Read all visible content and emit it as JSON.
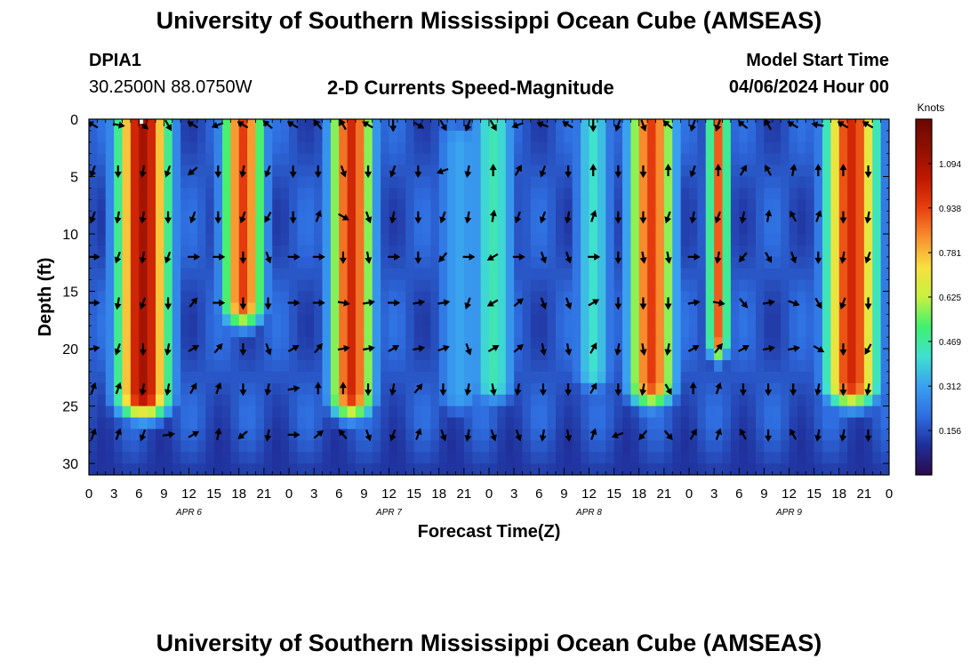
{
  "header": {
    "title": "University of Southern Mississippi Ocean Cube (AMSEAS)",
    "station_id": "DPIA1",
    "coordinates": "30.2500N  88.0750W",
    "plot_title": "2-D Currents Speed-Magnitude",
    "model_start_label": "Model Start Time",
    "model_start_value": "04/06/2024 Hour 00"
  },
  "footer": {
    "title": "University of Southern Mississippi Ocean Cube (AMSEAS)"
  },
  "chart_data": {
    "type": "heatmap",
    "title": "2-D Currents Speed-Magnitude",
    "xlabel": "Forecast Time(Z)",
    "ylabel": "Depth (ft)",
    "x_unit": "hours from model start",
    "xlim": [
      0,
      96
    ],
    "ylim": [
      0,
      31
    ],
    "x_tick_labels": [
      "0",
      "3",
      "6",
      "9",
      "12",
      "15",
      "18",
      "21",
      "0",
      "3",
      "6",
      "9",
      "12",
      "15",
      "18",
      "21",
      "0",
      "3",
      "6",
      "9",
      "12",
      "15",
      "18",
      "21",
      "0",
      "3",
      "6",
      "9",
      "12",
      "15",
      "18",
      "21",
      "0"
    ],
    "y_ticks": [
      0,
      5,
      10,
      15,
      20,
      25,
      30
    ],
    "y_tick_labels": [
      "0",
      "5",
      "10",
      "15",
      "20",
      "25",
      "30"
    ],
    "day_labels": [
      {
        "hour": 12,
        "label": "APR 6"
      },
      {
        "hour": 36,
        "label": "APR 7"
      },
      {
        "hour": 60,
        "label": "APR 8"
      },
      {
        "hour": 84,
        "label": "APR 9"
      }
    ],
    "colorbar": {
      "title": "Knots",
      "min": 0.0,
      "max": 1.25,
      "tick_values": [
        1.094,
        0.938,
        0.781,
        0.625,
        0.469,
        0.312,
        0.156
      ],
      "tick_labels": [
        "1.094",
        "0.938",
        "0.781",
        "0.625",
        "0.469",
        "0.312",
        "0.156"
      ],
      "colors": [
        "#2a0a4a",
        "#1f2f9a",
        "#2f6ee0",
        "#3aa0f0",
        "#40e0d0",
        "#40f070",
        "#c8f040",
        "#f8e040",
        "#f89030",
        "#e84010",
        "#c01800",
        "#901000",
        "#6a0800"
      ]
    },
    "speed_bands": [
      {
        "center_hour": 6.5,
        "width": 4.2,
        "top_depth": 0,
        "bottom_depth": 24,
        "peak": 1.1
      },
      {
        "center_hour": 18.5,
        "width": 3.3,
        "top_depth": 0,
        "bottom_depth": 16,
        "peak": 0.95
      },
      {
        "center_hour": 31.5,
        "width": 3.4,
        "top_depth": 0,
        "bottom_depth": 24,
        "peak": 1.0
      },
      {
        "center_hour": 48.5,
        "width": 3.8,
        "top_depth": 0,
        "bottom_depth": 23,
        "peak": 0.45
      },
      {
        "center_hour": 44.5,
        "width": 4.5,
        "top_depth": 2,
        "bottom_depth": 24,
        "peak": 0.32
      },
      {
        "center_hour": 60.5,
        "width": 3.2,
        "top_depth": 0,
        "bottom_depth": 22,
        "peak": 0.42
      },
      {
        "center_hour": 67.5,
        "width": 3.6,
        "top_depth": 0,
        "bottom_depth": 23,
        "peak": 0.95
      },
      {
        "center_hour": 75.5,
        "width": 1.6,
        "top_depth": 0,
        "bottom_depth": 19,
        "peak": 0.9
      },
      {
        "center_hour": 91.5,
        "width": 4.2,
        "top_depth": 0,
        "bottom_depth": 23,
        "peak": 1.0
      }
    ],
    "arrow_sample_hours": [
      0,
      3,
      6,
      9,
      12,
      15,
      18,
      21,
      24,
      27,
      30,
      33,
      36,
      39,
      42,
      45,
      48,
      51,
      54,
      57,
      60,
      63,
      66,
      69,
      72,
      75,
      78,
      81,
      84,
      87,
      90,
      93,
      96
    ],
    "arrow_sample_depths": [
      0.5,
      4.5,
      8.5,
      12,
      16,
      20,
      23.5,
      27.5
    ],
    "arrow_hour_offset": 0.5,
    "arrow_directions_deg": [
      [
        300,
        100,
        130,
        150,
        300,
        250,
        300,
        310,
        300,
        320,
        330,
        300,
        180,
        120,
        150,
        200,
        150,
        250,
        290,
        300,
        180,
        200,
        160,
        310,
        200,
        200,
        310,
        330,
        300,
        280,
        300,
        300,
        180
      ],
      [
        200,
        180,
        190,
        200,
        230,
        180,
        190,
        200,
        180,
        180,
        160,
        180,
        200,
        180,
        250,
        190,
        0,
        30,
        200,
        180,
        0,
        180,
        180,
        0,
        200,
        0,
        30,
        330,
        10,
        0,
        0,
        180,
        150
      ],
      [
        200,
        190,
        190,
        180,
        200,
        180,
        200,
        210,
        180,
        20,
        120,
        160,
        190,
        180,
        200,
        190,
        10,
        200,
        200,
        190,
        20,
        180,
        180,
        200,
        190,
        200,
        190,
        10,
        330,
        20,
        180,
        190,
        150
      ],
      [
        90,
        200,
        190,
        200,
        90,
        90,
        180,
        160,
        90,
        90,
        180,
        170,
        90,
        180,
        220,
        90,
        240,
        90,
        160,
        160,
        90,
        180,
        170,
        170,
        90,
        190,
        220,
        150,
        160,
        180,
        190,
        200,
        40
      ],
      [
        90,
        190,
        200,
        180,
        40,
        90,
        180,
        180,
        90,
        90,
        100,
        80,
        90,
        80,
        80,
        200,
        240,
        50,
        160,
        160,
        60,
        180,
        180,
        180,
        80,
        100,
        140,
        80,
        110,
        150,
        200,
        180,
        80
      ],
      [
        80,
        200,
        180,
        190,
        60,
        40,
        180,
        160,
        60,
        40,
        80,
        80,
        60,
        80,
        70,
        160,
        60,
        50,
        170,
        170,
        30,
        190,
        170,
        190,
        60,
        40,
        60,
        80,
        80,
        120,
        180,
        210,
        60
      ],
      [
        20,
        20,
        190,
        190,
        30,
        20,
        180,
        190,
        80,
        0,
        0,
        180,
        190,
        40,
        180,
        190,
        170,
        190,
        180,
        180,
        30,
        180,
        190,
        150,
        0,
        20,
        180,
        180,
        180,
        190,
        180,
        190,
        180
      ],
      [
        20,
        20,
        200,
        80,
        60,
        10,
        230,
        190,
        90,
        50,
        320,
        160,
        200,
        20,
        160,
        190,
        160,
        160,
        190,
        170,
        20,
        250,
        220,
        140,
        30,
        20,
        330,
        180,
        330,
        190,
        190,
        180,
        120
      ]
    ],
    "min_marker": {
      "hour": 6.3,
      "depth": 0.1
    }
  }
}
